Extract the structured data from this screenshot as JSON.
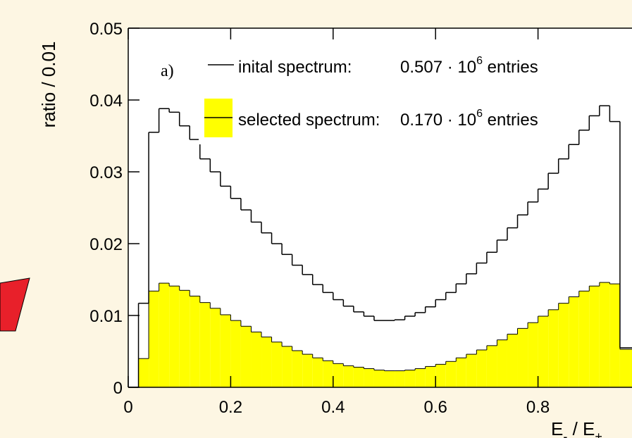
{
  "chart_data": {
    "type": "histogram",
    "panel_label": "a)",
    "ylabel": "ratio / 0.01",
    "xlabel": {
      "base1": "E",
      "sub1": "-",
      "sep": " / E",
      "sub2": "+"
    },
    "xlim": [
      0,
      1
    ],
    "ylim": [
      0,
      0.05
    ],
    "xticks": [
      0,
      0.2,
      0.4,
      0.6,
      0.8
    ],
    "yticks": [
      0,
      0.01,
      0.02,
      0.03,
      0.04,
      0.05
    ],
    "bins": [
      0,
      0.02,
      0.04,
      0.06,
      0.08,
      0.1,
      0.12,
      0.14,
      0.16,
      0.18,
      0.2,
      0.22,
      0.24,
      0.26,
      0.28,
      0.3,
      0.32,
      0.34,
      0.36,
      0.38,
      0.4,
      0.42,
      0.44,
      0.46,
      0.48,
      0.5,
      0.52,
      0.54,
      0.56,
      0.58,
      0.6,
      0.62,
      0.64,
      0.66,
      0.68,
      0.7,
      0.72,
      0.74,
      0.76,
      0.78,
      0.8,
      0.82,
      0.84,
      0.86,
      0.88,
      0.9,
      0.92,
      0.94,
      0.96,
      0.98,
      1
    ],
    "series": [
      {
        "name": "inital spectrum:",
        "count": "0.507 · 10",
        "exponent": "6",
        "unit": "entries",
        "color": "#000000",
        "style": "step",
        "values": [
          0,
          0.0117,
          0.0355,
          0.0388,
          0.0383,
          0.0364,
          0.0345,
          0.0318,
          0.03,
          0.028,
          0.0263,
          0.0247,
          0.023,
          0.0215,
          0.02,
          0.0185,
          0.017,
          0.0157,
          0.0143,
          0.0132,
          0.0122,
          0.0113,
          0.0105,
          0.0099,
          0.0093,
          0.0093,
          0.0094,
          0.0099,
          0.0104,
          0.0112,
          0.0122,
          0.0132,
          0.0144,
          0.0158,
          0.0173,
          0.0188,
          0.0205,
          0.0222,
          0.024,
          0.0258,
          0.0276,
          0.0298,
          0.0318,
          0.0338,
          0.0358,
          0.0378,
          0.0392,
          0.037,
          0.0055,
          0.0055
        ]
      },
      {
        "name": "selected spectrum:",
        "count": "0.170 · 10",
        "exponent": "6",
        "unit": "entries",
        "color": "#ffff00",
        "style": "filled",
        "values": [
          0,
          0.004,
          0.0134,
          0.0145,
          0.0141,
          0.0135,
          0.0127,
          0.0118,
          0.011,
          0.0101,
          0.0093,
          0.0085,
          0.0077,
          0.007,
          0.0063,
          0.0057,
          0.0051,
          0.0046,
          0.0041,
          0.0037,
          0.0033,
          0.003,
          0.0028,
          0.0026,
          0.0024,
          0.0023,
          0.0023,
          0.0024,
          0.0026,
          0.0029,
          0.0032,
          0.0036,
          0.0041,
          0.0046,
          0.0052,
          0.0058,
          0.0066,
          0.0074,
          0.0082,
          0.009,
          0.0099,
          0.0108,
          0.0117,
          0.0126,
          0.0134,
          0.0141,
          0.0146,
          0.0144,
          0.0053,
          0.0053
        ]
      }
    ]
  }
}
